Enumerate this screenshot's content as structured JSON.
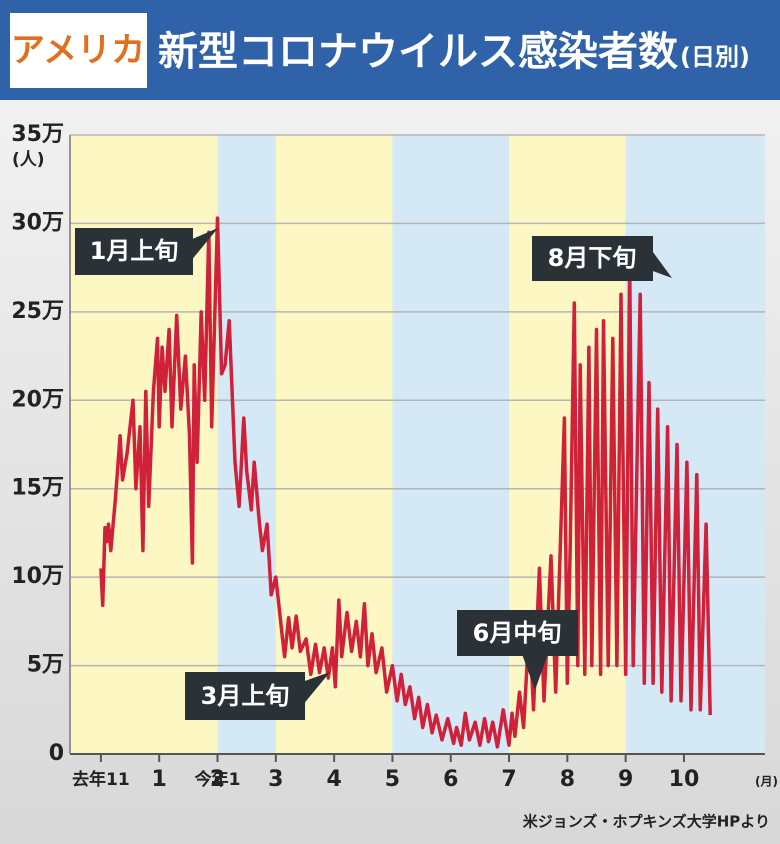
{
  "chart_data": {
    "type": "line",
    "badge": "アメリカ",
    "title": "新型コロナウイルス感染者数",
    "subtitle": "(日別)",
    "y_axis_label": "(人)",
    "x_axis_label": "(月)",
    "source": "米ジョンズ・ホプキンズ大学HPより",
    "annotations": [
      "1月上旬",
      "3月上旬",
      "6月中旬",
      "8月下旬"
    ],
    "xlim": [
      -0.53,
      11.39
    ],
    "xticks": [
      {
        "value": 0,
        "label": "去年11"
      },
      1,
      {
        "value": 2,
        "label": "今年1"
      },
      2,
      3,
      4,
      5,
      6,
      7,
      8,
      9,
      10
    ],
    "ylim": [
      0,
      35
    ],
    "yticks": [
      0,
      {
        "value": 5,
        "label": "5万"
      },
      {
        "value": 10,
        "label": "10万"
      },
      {
        "value": 15,
        "label": "15万"
      },
      {
        "value": 20,
        "label": "20万"
      },
      {
        "value": 25,
        "label": "25万"
      },
      {
        "value": 30,
        "label": "30万"
      },
      {
        "value": 35,
        "label": "35万"
      }
    ],
    "grid": true,
    "series": [
      {
        "color": "#d0213a",
        "x": [
          0,
          0.03,
          0.07,
          0.1,
          0.13,
          0.17,
          0.25,
          0.33,
          0.37,
          0.45,
          0.55,
          0.6,
          0.67,
          0.72,
          0.77,
          0.82,
          0.9,
          0.97,
          1.0,
          1.05,
          1.1,
          1.17,
          1.22,
          1.3,
          1.37,
          1.45,
          1.52,
          1.57,
          1.6,
          1.65,
          1.72,
          1.78,
          1.85,
          1.9,
          2.0,
          2.07,
          2.13,
          2.2,
          2.3,
          2.37,
          2.45,
          2.5,
          2.58,
          2.63,
          2.72,
          2.77,
          2.85,
          2.92,
          3.0,
          3.1,
          3.15,
          3.22,
          3.28,
          3.35,
          3.42,
          3.52,
          3.6,
          3.68,
          3.75,
          3.83,
          3.9,
          3.97,
          4.02,
          4.08,
          4.13,
          4.22,
          4.3,
          4.38,
          4.45,
          4.52,
          4.58,
          4.65,
          4.72,
          4.82,
          4.9,
          5.0,
          5.08,
          5.15,
          5.22,
          5.3,
          5.38,
          5.45,
          5.52,
          5.6,
          5.68,
          5.75,
          5.85,
          5.95,
          6.05,
          6.1,
          6.18,
          6.25,
          6.32,
          6.42,
          6.5,
          6.58,
          6.65,
          6.72,
          6.8,
          6.9,
          7.0,
          7.05,
          7.1,
          7.18,
          7.25,
          7.35,
          7.42,
          7.52,
          7.6,
          7.72,
          7.8,
          7.95,
          8.0,
          8.05,
          8.12,
          8.18,
          8.22,
          8.3,
          8.37,
          8.42,
          8.5,
          8.57,
          8.62,
          8.7,
          8.78,
          8.85,
          8.92,
          9.0,
          9.07,
          9.13,
          9.25,
          9.32,
          9.4,
          9.47,
          9.55,
          9.62,
          9.72,
          9.78,
          9.88,
          9.95,
          10.05,
          10.12,
          10.22,
          10.28,
          10.38,
          10.45
        ],
        "values": [
          10.5,
          8.4,
          12.8,
          12.0,
          13.0,
          11.5,
          14.5,
          18.0,
          15.5,
          17.0,
          20.0,
          15.0,
          18.5,
          11.5,
          20.5,
          14.0,
          20.5,
          23.5,
          18.5,
          23.0,
          20.5,
          24.0,
          18.5,
          24.8,
          19.5,
          22.5,
          18.0,
          10.8,
          22.0,
          16.5,
          25.0,
          20.0,
          29.5,
          18.5,
          30.3,
          21.5,
          22.0,
          24.5,
          16.5,
          14.0,
          19.0,
          16.0,
          13.8,
          16.5,
          13.0,
          11.5,
          13.0,
          9.0,
          10.0,
          7.0,
          5.5,
          7.7,
          6.0,
          7.8,
          5.8,
          6.5,
          4.5,
          6.2,
          4.6,
          6.0,
          4.3,
          6.0,
          3.8,
          8.7,
          5.5,
          8.0,
          5.8,
          7.5,
          5.5,
          8.5,
          5.0,
          6.8,
          4.6,
          6.0,
          3.5,
          5.0,
          3.0,
          4.5,
          2.8,
          3.8,
          2.0,
          3.2,
          1.5,
          2.8,
          1.2,
          2.2,
          0.8,
          2.0,
          0.6,
          1.5,
          0.5,
          2.3,
          0.8,
          1.8,
          0.5,
          2.0,
          0.7,
          1.8,
          0.4,
          2.5,
          0.5,
          2.3,
          1.0,
          3.5,
          1.5,
          7.5,
          2.5,
          10.5,
          3.0,
          11.2,
          3.5,
          19.0,
          4.0,
          12.0,
          25.5,
          5.0,
          22.0,
          4.5,
          23.0,
          5.0,
          24.0,
          4.5,
          24.5,
          5.0,
          23.5,
          5.0,
          26.0,
          4.5,
          27.7,
          5.0,
          26.0,
          4.0,
          21.0,
          4.0,
          19.5,
          3.5,
          18.5,
          3.0,
          17.5,
          3.0,
          16.5,
          2.5,
          15.8,
          2.5,
          13.0,
          2.2
        ]
      }
    ]
  }
}
